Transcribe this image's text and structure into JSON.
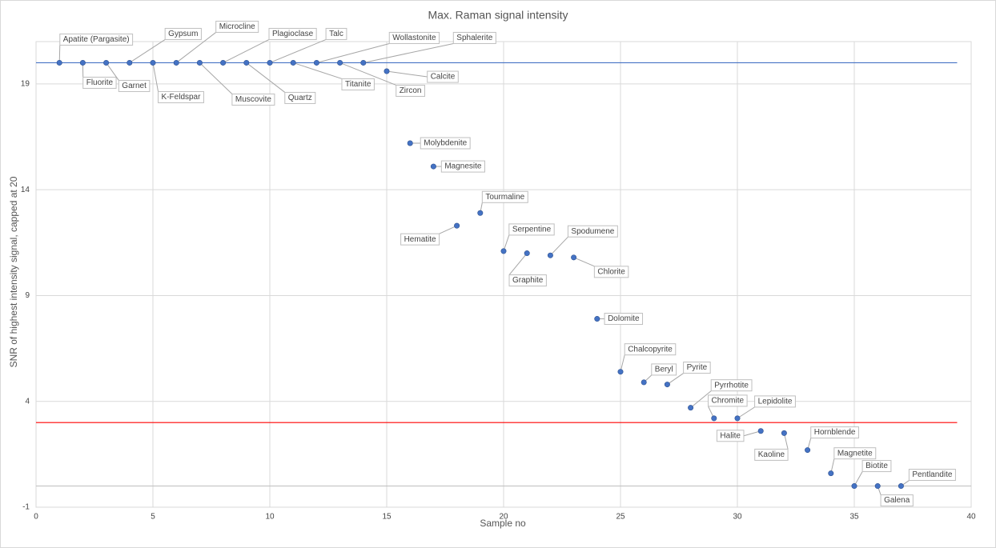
{
  "chart_data": {
    "type": "scatter",
    "title": "Max. Raman signal intensity",
    "x_label": "Sample no",
    "y_label": "SNR of highest intensity signal, capped at 20",
    "xlim": [
      0,
      40
    ],
    "xticks": [
      0,
      5,
      10,
      15,
      20,
      25,
      30,
      35,
      40
    ],
    "ylim": [
      -1,
      21
    ],
    "yticks": [
      -1,
      4,
      9,
      14,
      19
    ],
    "grid": true,
    "series": [
      {
        "color": "#4472c4",
        "x": [
          1,
          2,
          3,
          4,
          5,
          6,
          7,
          8,
          9,
          10,
          11,
          12,
          13,
          14,
          15,
          16,
          17,
          18,
          19,
          20,
          21,
          22,
          23,
          24,
          25,
          26,
          27,
          28,
          29,
          30,
          31,
          32,
          33,
          34,
          35,
          36,
          37
        ],
        "values": [
          20,
          20,
          20,
          20,
          20,
          20,
          20,
          20,
          20,
          20,
          20,
          20,
          20,
          20,
          19.6,
          16.2,
          15.1,
          12.3,
          12.9,
          11.1,
          11.0,
          10.9,
          10.8,
          7.9,
          5.4,
          4.9,
          4.8,
          3.7,
          3.2,
          3.2,
          2.6,
          2.5,
          1.7,
          0.6,
          0,
          0,
          0
        ],
        "labels": [
          "Apatite (Pargasite)",
          "Fluorite",
          "Garnet",
          "Gypsum",
          "K-Feldspar",
          "Microcline",
          "Muscovite",
          "Plagioclase",
          "Quartz",
          "Talc",
          "Titanite",
          "Wollastonite",
          "Zircon",
          "Sphalerite",
          "Calcite",
          "Molybdenite",
          "Magnesite",
          "Hematite",
          "Tourmaline",
          "Serpentine",
          "Graphite",
          "Spodumene",
          "Chlorite",
          "Dolomite",
          "Chalcopyrite",
          "Beryl",
          "Pyrite",
          "Pyrrhotite",
          "Chromite",
          "Lepidolite",
          "Halite",
          "Kaoline",
          "Hornblende",
          "Magnetite",
          "Biotite",
          "Galena",
          "Pentlandite"
        ]
      }
    ],
    "reference_lines": [
      {
        "y": 20,
        "x_end": 39.4,
        "color": "#4472c4"
      },
      {
        "y": 3,
        "x_end": 39.4,
        "color": "#ff0000"
      }
    ]
  }
}
